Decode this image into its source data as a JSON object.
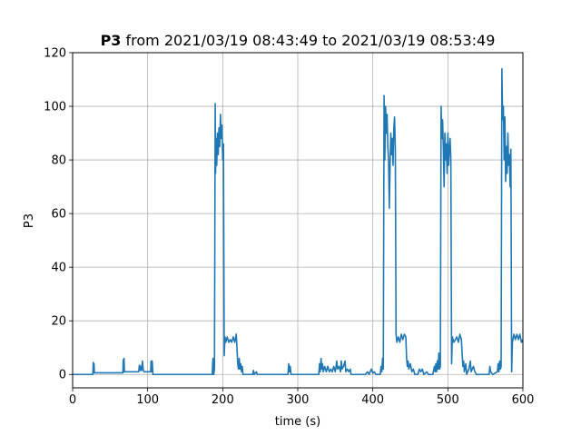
{
  "chart_data": {
    "type": "line",
    "title_bold": "P3",
    "title_rest": " from 2021/03/19 08:43:49 to 2021/03/19 08:53:49",
    "xlabel": "time (s)",
    "ylabel": "P3",
    "xlim": [
      0,
      600
    ],
    "ylim": [
      -5,
      120
    ],
    "xticks": [
      0,
      100,
      200,
      300,
      400,
      500,
      600
    ],
    "yticks": [
      0,
      20,
      40,
      60,
      80,
      100,
      120
    ],
    "grid": true,
    "line_color": "#1f77b4",
    "series": [
      {
        "points": [
          [
            0,
            0
          ],
          [
            27,
            0
          ],
          [
            27.5,
            4.5
          ],
          [
            28,
            0.6
          ],
          [
            28.5,
            4
          ],
          [
            29,
            0.6
          ],
          [
            30,
            0.6
          ],
          [
            50,
            0.6
          ],
          [
            67,
            0.6
          ],
          [
            67.5,
            5.5
          ],
          [
            68,
            1
          ],
          [
            68.5,
            6
          ],
          [
            69,
            1
          ],
          [
            70,
            1
          ],
          [
            88,
            1
          ],
          [
            89,
            3.5
          ],
          [
            90,
            1.5
          ],
          [
            91,
            3
          ],
          [
            92,
            1.5
          ],
          [
            93,
            5
          ],
          [
            94,
            2
          ],
          [
            95,
            1
          ],
          [
            104,
            1
          ],
          [
            104.5,
            5
          ],
          [
            105,
            1
          ],
          [
            106,
            5
          ],
          [
            107,
            0
          ],
          [
            130,
            0
          ],
          [
            150,
            0
          ],
          [
            180,
            0
          ],
          [
            186,
            0
          ],
          [
            187,
            6
          ],
          [
            188,
            0
          ],
          [
            189,
            2
          ],
          [
            190,
            101
          ],
          [
            190.5,
            75
          ],
          [
            191,
            88
          ],
          [
            192,
            78
          ],
          [
            193,
            90
          ],
          [
            194,
            82
          ],
          [
            195,
            92
          ],
          [
            196,
            85
          ],
          [
            197,
            97
          ],
          [
            198,
            88
          ],
          [
            199,
            93
          ],
          [
            200,
            80
          ],
          [
            201,
            86
          ],
          [
            202,
            7
          ],
          [
            203,
            14
          ],
          [
            204,
            12
          ],
          [
            206,
            14
          ],
          [
            208,
            12
          ],
          [
            210,
            13
          ],
          [
            212,
            12
          ],
          [
            214,
            14
          ],
          [
            216,
            12
          ],
          [
            218,
            15
          ],
          [
            219,
            10
          ],
          [
            220,
            4
          ],
          [
            221,
            2
          ],
          [
            222,
            6
          ],
          [
            223,
            2
          ],
          [
            224,
            4
          ],
          [
            225,
            1
          ],
          [
            226,
            3
          ],
          [
            227,
            0
          ],
          [
            240,
            0
          ],
          [
            241,
            1.5
          ],
          [
            242,
            0
          ],
          [
            245,
            1
          ],
          [
            246,
            0
          ],
          [
            260,
            0
          ],
          [
            287,
            0
          ],
          [
            288,
            4
          ],
          [
            289,
            1
          ],
          [
            290,
            3
          ],
          [
            291,
            0
          ],
          [
            310,
            0
          ],
          [
            328,
            0
          ],
          [
            329,
            4
          ],
          [
            330,
            1
          ],
          [
            331,
            6
          ],
          [
            332,
            2
          ],
          [
            333,
            4
          ],
          [
            334,
            1
          ],
          [
            336,
            3
          ],
          [
            338,
            1
          ],
          [
            340,
            3
          ],
          [
            342,
            1
          ],
          [
            344,
            2
          ],
          [
            346,
            1
          ],
          [
            348,
            3
          ],
          [
            350,
            1
          ],
          [
            352,
            5
          ],
          [
            353,
            2
          ],
          [
            355,
            3
          ],
          [
            357,
            1
          ],
          [
            358,
            5
          ],
          [
            359,
            2
          ],
          [
            361,
            3
          ],
          [
            363,
            5
          ],
          [
            364,
            1
          ],
          [
            366,
            2
          ],
          [
            368,
            1
          ],
          [
            370,
            2
          ],
          [
            371,
            0
          ],
          [
            390,
            0
          ],
          [
            393,
            1
          ],
          [
            395,
            0
          ],
          [
            398,
            2
          ],
          [
            400,
            0.5
          ],
          [
            402,
            1
          ],
          [
            404,
            0
          ],
          [
            410,
            0
          ],
          [
            411,
            3
          ],
          [
            412,
            1
          ],
          [
            413,
            6
          ],
          [
            414,
            2
          ],
          [
            415,
            104
          ],
          [
            416,
            80
          ],
          [
            417,
            100
          ],
          [
            418,
            90
          ],
          [
            419,
            97
          ],
          [
            420,
            85
          ],
          [
            421,
            80
          ],
          [
            422,
            62
          ],
          [
            423,
            78
          ],
          [
            424,
            90
          ],
          [
            425,
            82
          ],
          [
            426,
            88
          ],
          [
            427,
            78
          ],
          [
            428,
            92
          ],
          [
            429,
            96
          ],
          [
            430,
            84
          ],
          [
            431,
            15
          ],
          [
            432,
            12
          ],
          [
            434,
            14
          ],
          [
            436,
            12
          ],
          [
            438,
            15
          ],
          [
            440,
            13
          ],
          [
            442,
            15
          ],
          [
            444,
            14
          ],
          [
            445,
            6
          ],
          [
            446,
            3
          ],
          [
            447,
            5
          ],
          [
            448,
            2
          ],
          [
            450,
            4
          ],
          [
            452,
            1
          ],
          [
            454,
            2
          ],
          [
            456,
            0
          ],
          [
            460,
            0
          ],
          [
            462,
            2
          ],
          [
            464,
            1
          ],
          [
            466,
            2
          ],
          [
            468,
            0
          ],
          [
            472,
            1
          ],
          [
            474,
            0
          ],
          [
            480,
            0
          ],
          [
            482,
            3
          ],
          [
            483,
            1
          ],
          [
            484,
            4
          ],
          [
            485,
            1
          ],
          [
            486,
            5
          ],
          [
            487,
            2
          ],
          [
            488,
            8
          ],
          [
            489,
            2
          ],
          [
            490,
            3
          ],
          [
            491,
            100
          ],
          [
            492,
            88
          ],
          [
            493,
            95
          ],
          [
            494,
            84
          ],
          [
            495,
            70
          ],
          [
            496,
            90
          ],
          [
            497,
            80
          ],
          [
            498,
            86
          ],
          [
            499,
            75
          ],
          [
            500,
            90
          ],
          [
            501,
            78
          ],
          [
            502,
            84
          ],
          [
            503,
            88
          ],
          [
            504,
            80
          ],
          [
            505,
            4
          ],
          [
            506,
            14
          ],
          [
            508,
            12
          ],
          [
            510,
            13
          ],
          [
            512,
            14
          ],
          [
            514,
            12
          ],
          [
            516,
            15
          ],
          [
            518,
            13
          ],
          [
            519,
            8
          ],
          [
            520,
            3
          ],
          [
            521,
            5
          ],
          [
            522,
            1
          ],
          [
            524,
            4
          ],
          [
            525,
            0
          ],
          [
            528,
            2
          ],
          [
            530,
            5
          ],
          [
            531,
            1
          ],
          [
            534,
            3
          ],
          [
            536,
            1
          ],
          [
            538,
            0
          ],
          [
            540,
            0
          ],
          [
            545,
            0
          ],
          [
            550,
            0
          ],
          [
            555,
            0
          ],
          [
            556,
            3
          ],
          [
            557,
            1
          ],
          [
            560,
            0
          ],
          [
            566,
            1
          ],
          [
            567,
            4
          ],
          [
            568,
            1
          ],
          [
            569,
            5
          ],
          [
            570,
            2
          ],
          [
            571,
            3
          ],
          [
            572,
            114
          ],
          [
            573,
            95
          ],
          [
            574,
            100
          ],
          [
            575,
            80
          ],
          [
            576,
            96
          ],
          [
            577,
            72
          ],
          [
            578,
            85
          ],
          [
            579,
            75
          ],
          [
            580,
            90
          ],
          [
            581,
            78
          ],
          [
            582,
            82
          ],
          [
            583,
            70
          ],
          [
            584,
            84
          ],
          [
            585,
            1
          ],
          [
            586,
            12
          ],
          [
            588,
            15
          ],
          [
            590,
            13
          ],
          [
            592,
            15
          ],
          [
            594,
            13
          ],
          [
            596,
            15
          ],
          [
            598,
            12
          ],
          [
            600,
            13
          ]
        ]
      }
    ]
  }
}
